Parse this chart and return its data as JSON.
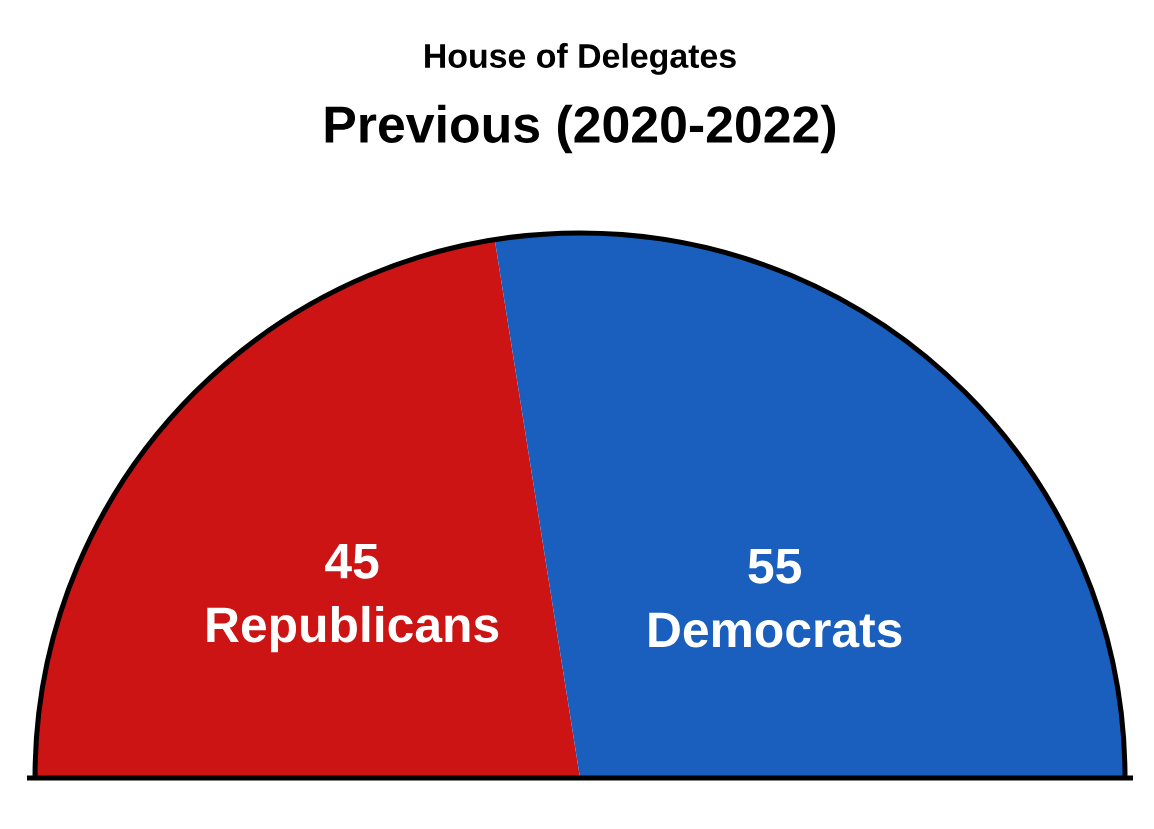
{
  "chart_data": {
    "type": "pie",
    "title": "House of Delegates",
    "subtitle": "Previous (2020-2022)",
    "categories": [
      "Republicans",
      "Democrats"
    ],
    "values": [
      45,
      55
    ],
    "colors": [
      "#cc1414",
      "#1a5fbe"
    ],
    "value_labels": [
      "45",
      "55"
    ]
  }
}
